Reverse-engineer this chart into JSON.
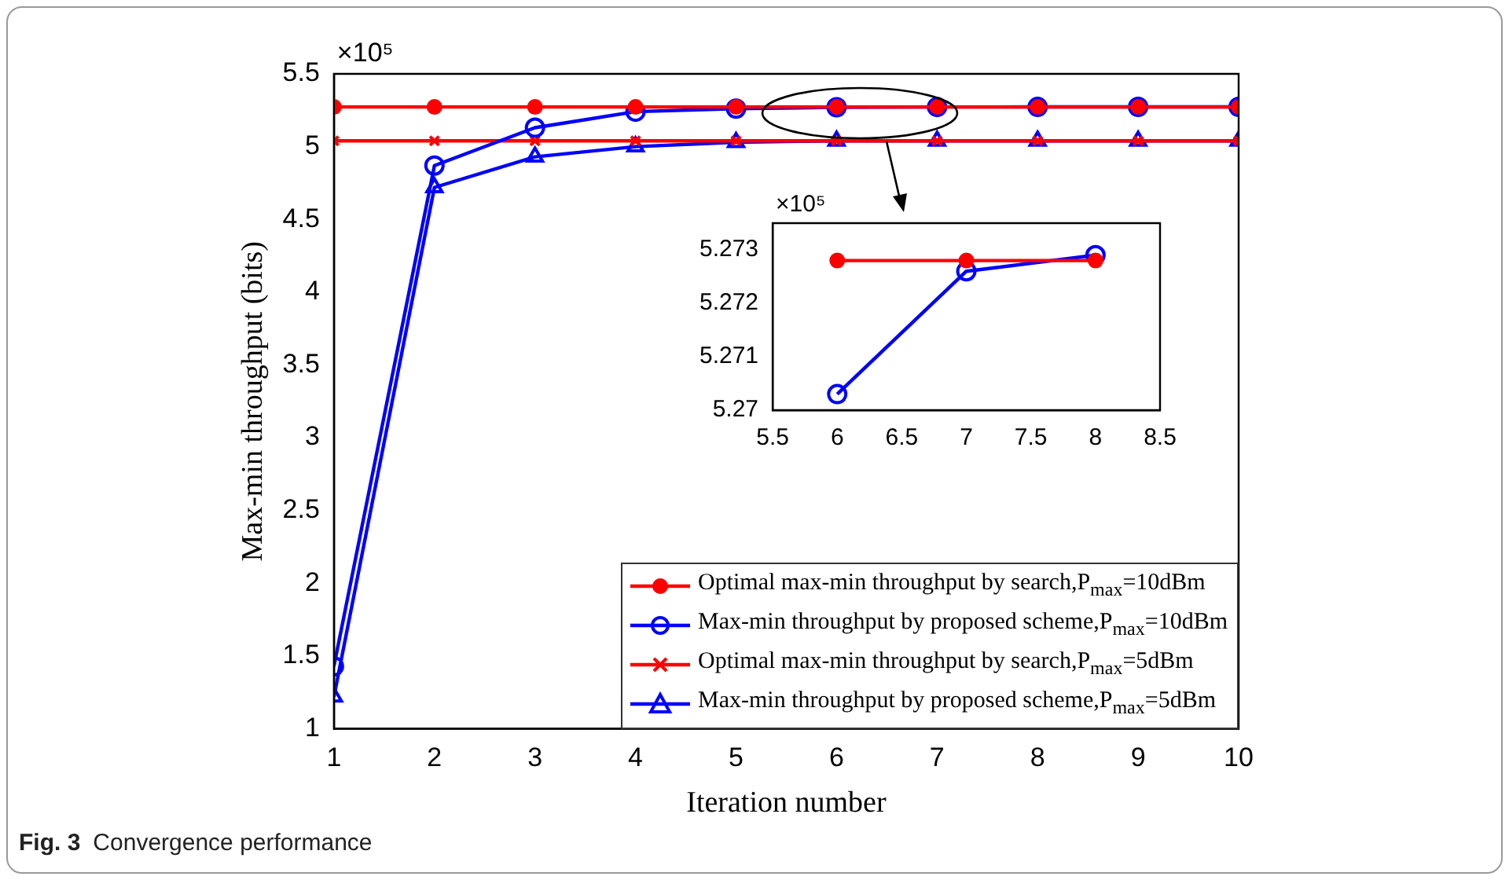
{
  "chart_data": [
    {
      "type": "line",
      "xlabel": "Iteration number",
      "ylabel": "Max-min throughput (bits)",
      "x": [
        1,
        2,
        3,
        4,
        5,
        6,
        7,
        8,
        9,
        10
      ],
      "xlim": [
        1,
        10
      ],
      "xticks": [
        1,
        2,
        3,
        4,
        5,
        6,
        7,
        8,
        9,
        10
      ],
      "ylim": [
        1,
        5.5
      ],
      "yticks": [
        1,
        1.5,
        2,
        2.5,
        3,
        3.5,
        4,
        4.5,
        5,
        5.5
      ],
      "grid": false,
      "legend": "bottom right",
      "line_style": "solid",
      "annotations": [
        "×10⁵",
        "Fig. 3",
        "Convergence performance"
      ],
      "series": [
        {
          "name": "Optimal max-min throughput by search,P$_{max}$=10dBm",
          "color": "#ff0000",
          "marker": "circle",
          "values": [
            5.2728,
            5.2728,
            5.2728,
            5.2728,
            5.2728,
            5.2728,
            5.2728,
            5.2728,
            5.2728,
            5.2728
          ]
        },
        {
          "name": "Max-min throughput by proposed scheme,P$_{max}$=10dBm",
          "color": "#0000ff",
          "marker": "circle",
          "values": [
            1.43,
            4.87,
            5.13,
            5.24,
            5.261,
            5.2703,
            5.2726,
            5.2729,
            5.273,
            5.273
          ]
        },
        {
          "name": "Optimal max-min throughput by search,P$_{max}$=5dBm",
          "color": "#ff0000",
          "marker": "cross",
          "values": [
            5.04,
            5.04,
            5.04,
            5.04,
            5.04,
            5.04,
            5.04,
            5.04,
            5.04,
            5.04
          ]
        },
        {
          "name": "Max-min throughput by proposed scheme,P$_{max}$=5dBm",
          "color": "#0000ff",
          "marker": "triangle",
          "values": [
            1.22,
            4.72,
            4.93,
            5.0,
            5.03,
            5.04,
            5.04,
            5.04,
            5.04,
            5.04
          ]
        }
      ]
    },
    {
      "type": "line",
      "x": [
        6,
        7,
        8
      ],
      "xlim": [
        5.5,
        8.5
      ],
      "xticks": [
        5.5,
        6,
        6.5,
        7,
        7.5,
        8,
        8.5
      ],
      "ylim": [
        5.27,
        5.2735
      ],
      "yticks": [
        5.27,
        5.271,
        5.272,
        5.273
      ],
      "grid": false,
      "line_style": "solid",
      "annotations": [
        "×10⁵"
      ],
      "series": [
        {
          "color": "#ff0000",
          "marker": "circle",
          "values": [
            5.2728,
            5.2728,
            5.2728
          ]
        },
        {
          "color": "#0000ff",
          "marker": "circle",
          "values": [
            5.2703,
            5.2726,
            5.2729
          ]
        }
      ]
    }
  ]
}
